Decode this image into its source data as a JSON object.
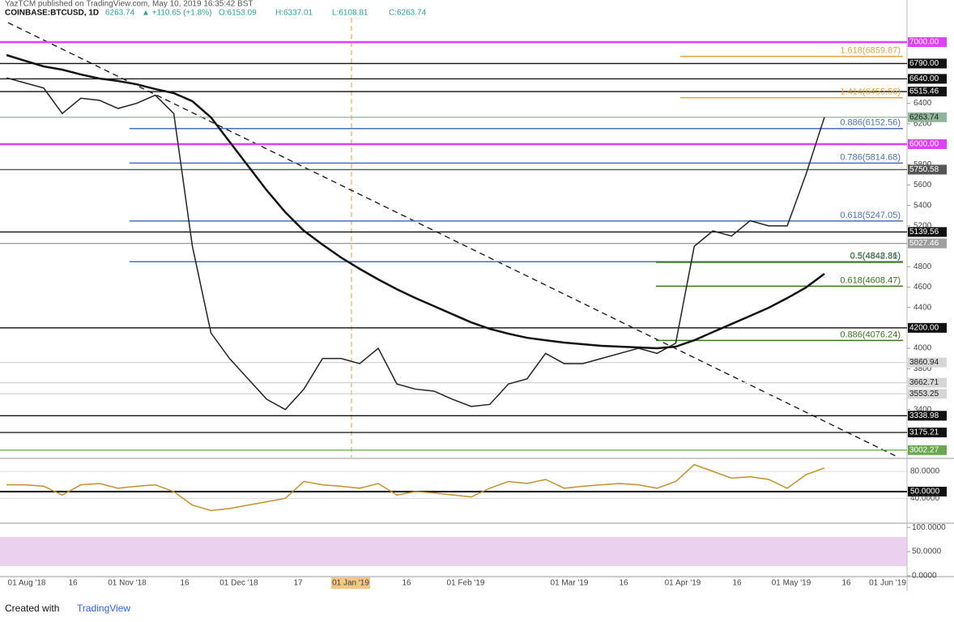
{
  "header": {
    "publisher": "YazTCM published on TradingView.com, May 10, 2019 16:35:42 BST",
    "symbol": "COINBASE:BTCUSD, 1D",
    "last": "6263.74",
    "change": "▲ +110.65 (+1.8%)",
    "ohlc": [
      "O:6153.09",
      "H:6337.01",
      "L:6108.81",
      "C:6263.74"
    ]
  },
  "chart_data": {
    "type": "line",
    "ylim": [
      2929,
      7238
    ],
    "yticks": [
      3400,
      3800,
      4000,
      4400,
      4600,
      4800,
      5200,
      5400,
      5600,
      5800,
      6200,
      6400
    ],
    "series": [
      {
        "color": "#222222",
        "values": [
          6650,
          6600,
          6550,
          6300,
          6450,
          6430,
          6350,
          6400,
          6480,
          6300,
          5000,
          4150,
          3900,
          3700,
          3500,
          3400,
          3600,
          3900,
          3900,
          3850,
          4000,
          3650,
          3600,
          3580,
          3500,
          3430,
          3450,
          3650,
          3700,
          3950,
          3850,
          3850,
          3900,
          3950,
          4000,
          3950,
          4050,
          5000,
          5150,
          5100,
          5250,
          5200,
          5200,
          5700,
          6263.74
        ]
      },
      {
        "color": "#111111",
        "values": [
          6873,
          6817,
          6762,
          6730,
          6683,
          6643,
          6619,
          6587,
          6540,
          6500,
          6421,
          6262,
          6024,
          5786,
          5548,
          5333,
          5151,
          5016,
          4889,
          4778,
          4675,
          4579,
          4492,
          4413,
          4333,
          4254,
          4190,
          4143,
          4103,
          4079,
          4056,
          4040,
          4024,
          4016,
          4008,
          4000,
          4016,
          4079,
          4159,
          4238,
          4317,
          4397,
          4492,
          4595,
          4730
        ]
      }
    ],
    "levels": [
      {
        "value": 7000,
        "label": "7000.00",
        "color": "#e040fb"
      },
      {
        "value": 6790,
        "label": "6790.00",
        "color": "#111111"
      },
      {
        "value": 6640,
        "label": "6640.00",
        "color": "#111111"
      },
      {
        "value": 6515.46,
        "label": "6515.46",
        "color": "#111111"
      },
      {
        "value": 6263.74,
        "label": "6263.74",
        "color": "#8fb59a"
      },
      {
        "value": 6000,
        "label": "6000.00",
        "color": "#e040fb"
      },
      {
        "value": 5750.58,
        "label": "5750.58",
        "color": "#555555"
      },
      {
        "value": 5139.56,
        "label": "5139.56",
        "color": "#111111"
      },
      {
        "value": 5027.46,
        "label": "5027.46",
        "color": "#9e9e9e"
      },
      {
        "value": 4200,
        "label": "4200.00",
        "color": "#111111"
      },
      {
        "value": 3860.94,
        "label": "3860.94",
        "color": "#d6d6d6"
      },
      {
        "value": 3662.71,
        "label": "3662.71",
        "color": "#d6d6d6"
      },
      {
        "value": 3553.25,
        "label": "3553.25",
        "color": "#d6d6d6"
      },
      {
        "value": 3338.98,
        "label": "3338.98",
        "color": "#111111"
      },
      {
        "value": 3175.21,
        "label": "3175.21",
        "color": "#111111"
      },
      {
        "value": 3002.27,
        "label": "3002.27",
        "color": "#6aa84f"
      }
    ],
    "fib": [
      {
        "value": 6859.87,
        "label": "1.618(6859.87)",
        "color": "#e6a23c"
      },
      {
        "value": 6455.56,
        "label": "1.414(6455.56)",
        "color": "#e6a23c"
      },
      {
        "value": 6152.56,
        "label": "0.886(6152.56)",
        "color": "#4a6fb5"
      },
      {
        "value": 5814.68,
        "label": "0.786(5814.68)",
        "color": "#4a6fb5"
      },
      {
        "value": 5247.05,
        "label": "0.618(5247.05)",
        "color": "#4a6fb5"
      },
      {
        "value": 4848.36,
        "label": "0.5(4848.36)",
        "color": "#4a6fb5"
      },
      {
        "value": 4842.81,
        "label": "0.5(4842.81)",
        "color": "#38761d"
      },
      {
        "value": 4608.47,
        "label": "0.618(4608.47)",
        "color": "#38761d"
      },
      {
        "value": 4076.24,
        "label": "0.886(4076.24)",
        "color": "#38761d"
      }
    ],
    "xtick_labels": [
      "01 Aug '18",
      "16",
      "01 Nov '18",
      "16",
      "01 Dec '18",
      "17",
      "01 Jan '19",
      "16",
      "01 Feb '19",
      "01 Mar '19",
      "16",
      "01 Apr '19",
      "16",
      "01 May '19",
      "16",
      "01 Jun '19"
    ],
    "rsi": {
      "color": "#c8902a",
      "ylim": [
        4.4,
        96.8
      ],
      "yticks": [
        {
          "value": 80,
          "label": "80.0000"
        },
        {
          "value": 50,
          "label": "50.0000"
        },
        {
          "value": 40,
          "label": "40.0000"
        }
      ],
      "values": [
        60,
        60,
        58,
        45,
        60,
        62,
        55,
        58,
        60,
        50,
        30,
        22,
        25,
        30,
        35,
        40,
        65,
        60,
        58,
        55,
        62,
        45,
        50,
        48,
        45,
        42,
        55,
        65,
        62,
        68,
        55,
        58,
        60,
        62,
        60,
        55,
        65,
        90,
        80,
        70,
        72,
        68,
        55,
        75,
        85
      ]
    },
    "stoch": {
      "ylim": [
        -1.7,
        105.2
      ],
      "yticks": [
        {
          "value": 100,
          "label": "100.0000"
        },
        {
          "value": 50,
          "label": "50.0000"
        },
        {
          "value": 0,
          "label": "0.0000"
        }
      ]
    }
  },
  "footer": {
    "created": "Created with",
    "brand": "TradingView"
  }
}
